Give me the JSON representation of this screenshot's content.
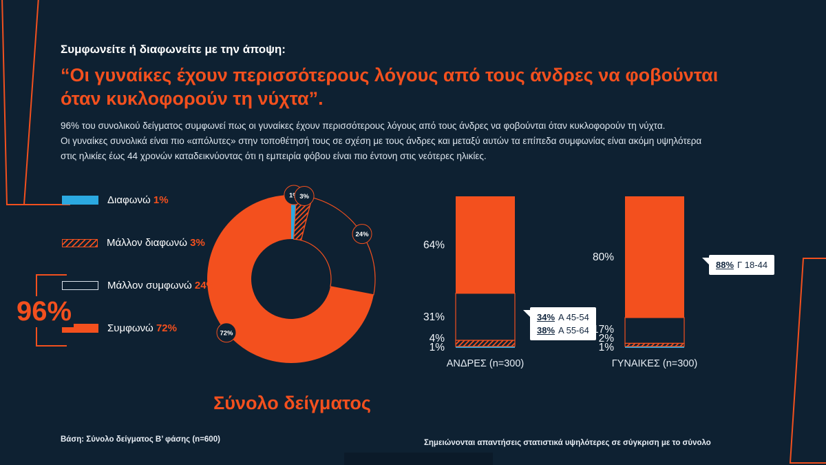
{
  "colors": {
    "background": "#0E2132",
    "orange": "#F3501E",
    "blue": "#2BA9E1",
    "white": "#FFFFFF",
    "body_text": "#DFE7EF",
    "callout_text": "#12263E"
  },
  "header": {
    "kicker": "Συμφωνείτε ή διαφωνείτε με την άποψη:",
    "quote_line1": "“Οι γυναίκες έχουν περισσότερους λόγους από τους άνδρες να φοβούνται",
    "quote_line2": "όταν κυκλοφορούν τη νύχτα”.",
    "body_line1": "96% του συνολικού δείγματος συμφωνεί πως οι γυναίκες έχουν περισσότερους λόγους από τους άνδρες να φοβούνται όταν κυκλοφορούν τη νύχτα.",
    "body_line2": "Οι γυναίκες συνολικά είναι πιο «απόλυτες» στην τοποθέτησή τους σε σχέση με τους άνδρες και μεταξύ αυτών τα επίπεδα συμφωνίας είναι ακόμη υψηλότερα",
    "body_line3": "στις ηλικίες έως 44 χρονών καταδεικνύοντας ότι η εμπειρία φόβου είναι πιο έντονη στις νεότερες ηλικίες."
  },
  "legend": {
    "items": [
      {
        "label": "Διαφωνώ",
        "value": "1%",
        "style": "solid-blue"
      },
      {
        "label": "Μάλλον διαφωνώ",
        "value": "3%",
        "style": "hatch"
      },
      {
        "label": "Μάλλον συμφωνώ",
        "value": "24%",
        "style": "outline"
      },
      {
        "label": "Συμφωνώ",
        "value": "72%",
        "style": "solid-orange"
      }
    ],
    "bracket_total": "96%"
  },
  "chart_data": [
    {
      "type": "pie",
      "variant": "donut",
      "title": "Σύνολο δείγματος",
      "segments": [
        {
          "label": "Διαφωνώ",
          "value": 1,
          "style": "solid-blue"
        },
        {
          "label": "Μάλλον διαφωνώ",
          "value": 3,
          "style": "hatch"
        },
        {
          "label": "Μάλλον συμφωνώ",
          "value": 24,
          "style": "outline"
        },
        {
          "label": "Συμφωνώ",
          "value": 72,
          "style": "solid-orange"
        }
      ],
      "value_labels": [
        "1%",
        "3%",
        "24%",
        "72%"
      ]
    },
    {
      "type": "bar",
      "variant": "stacked-100",
      "categories": [
        "ΑΝΔΡΕΣ (n=300)",
        "ΓΥΝΑΙΚΕΣ (n=300)"
      ],
      "series": [
        {
          "name": "Διαφωνώ",
          "style": "solid-blue",
          "values": [
            1,
            1
          ]
        },
        {
          "name": "Μάλλον διαφωνώ",
          "style": "hatch",
          "values": [
            4,
            2
          ]
        },
        {
          "name": "Μάλλον συμφωνώ",
          "style": "outline",
          "values": [
            31,
            17
          ]
        },
        {
          "name": "Συμφωνώ",
          "style": "solid-orange",
          "values": [
            64,
            80
          ]
        }
      ],
      "value_labels": [
        [
          "1%",
          "4%",
          "31%",
          "64%"
        ],
        [
          "1%",
          "2%",
          "17%",
          "80%"
        ]
      ],
      "ylim": [
        0,
        100
      ],
      "callouts": [
        {
          "bar": 0,
          "lines": [
            {
              "pct": "34%",
              "text": "Α 45-54"
            },
            {
              "pct": "38%",
              "text": "Α 55-64"
            }
          ]
        },
        {
          "bar": 1,
          "lines": [
            {
              "pct": "88%",
              "text": "Γ 18-44"
            }
          ]
        }
      ]
    }
  ],
  "footnotes": {
    "left": "Βάση: Σύνολο δείγματος Β’ φάσης (n=600)",
    "right": "Σημειώνονται απαντήσεις στατιστικά υψηλότερες σε σύγκριση με το σύνολο"
  }
}
